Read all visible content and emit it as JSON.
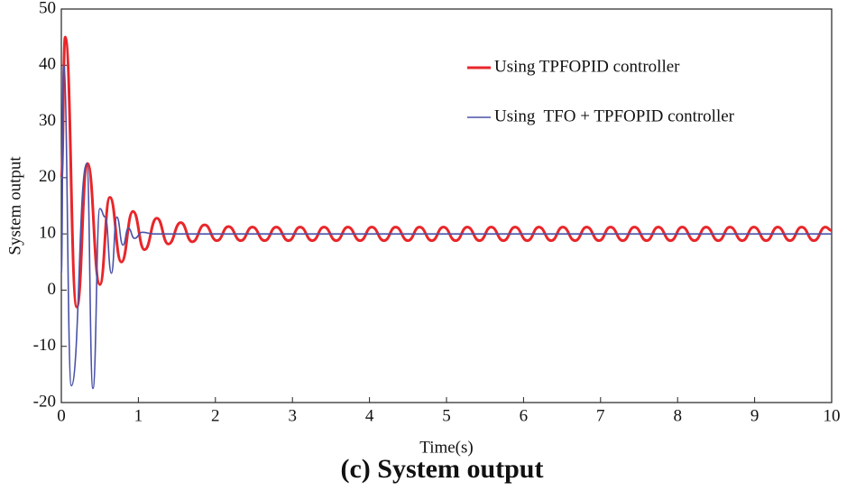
{
  "chart_data": {
    "type": "line",
    "title": "(c) System output",
    "x_label": "Time(s)",
    "y_label": "System output",
    "xlim": [
      0,
      10
    ],
    "xticks": [
      0,
      1,
      2,
      3,
      4,
      5,
      6,
      7,
      8,
      9,
      10
    ],
    "ylim": [
      -20,
      50
    ],
    "yticks": [
      -20,
      -10,
      0,
      10,
      20,
      30,
      40,
      50
    ],
    "legend": "upper right",
    "series": [
      {
        "name": "Using TPFOPID controller",
        "color": "#e8262a",
        "width": 3,
        "x": [
          0,
          0.05,
          0.2,
          0.34,
          0.5,
          0.63,
          0.78,
          0.93,
          1.08,
          1.24,
          1.39,
          1.55,
          1.7,
          1.86,
          2.02,
          2.17,
          2.33,
          2.48,
          2.64,
          2.79,
          2.95,
          3.1,
          3.26,
          3.41,
          3.57,
          3.72,
          3.88,
          4.03,
          4.19,
          4.34,
          4.5,
          4.65,
          4.81,
          4.96,
          5.12,
          5.27,
          5.43,
          5.58,
          5.74,
          5.89,
          6.05,
          6.2,
          6.36,
          6.51,
          6.67,
          6.82,
          6.98,
          7.13,
          7.29,
          7.44,
          7.6,
          7.75,
          7.91,
          8.06,
          8.22,
          8.37,
          8.53,
          8.68,
          8.84,
          8.99,
          9.15,
          9.3,
          9.46,
          9.61,
          9.77,
          9.92,
          10
        ],
        "values": [
          20,
          45,
          -3,
          22.5,
          1,
          16.5,
          5,
          14,
          7.2,
          12.8,
          8.2,
          12,
          8.6,
          11.6,
          8.8,
          11.3,
          8.8,
          11.2,
          8.8,
          11.2,
          8.8,
          11.2,
          8.8,
          11.2,
          8.8,
          11.2,
          8.8,
          11.2,
          8.8,
          11.2,
          8.8,
          11.2,
          8.8,
          11.2,
          8.8,
          11.2,
          8.8,
          11.2,
          8.8,
          11.2,
          8.8,
          11.2,
          8.8,
          11.2,
          8.8,
          11.2,
          8.8,
          11.2,
          8.8,
          11.2,
          8.8,
          11.2,
          8.8,
          11.2,
          8.8,
          11.2,
          8.8,
          11.2,
          8.8,
          11.2,
          8.8,
          11.2,
          8.8,
          11.2,
          8.8,
          11.2,
          10.6
        ]
      },
      {
        "name": "Using  TFO + TPFOPID controller",
        "color": "#4a52a8",
        "width": 1.6,
        "x": [
          0,
          0.03,
          0.13,
          0.33,
          0.41,
          0.5,
          0.57,
          0.65,
          0.72,
          0.8,
          0.87,
          0.95,
          1.05,
          1.2,
          10
        ],
        "values": [
          3,
          40,
          -17,
          22.5,
          -17.5,
          14.5,
          13,
          3,
          13,
          8,
          11,
          9.2,
          10.3,
          10,
          10
        ]
      }
    ]
  }
}
